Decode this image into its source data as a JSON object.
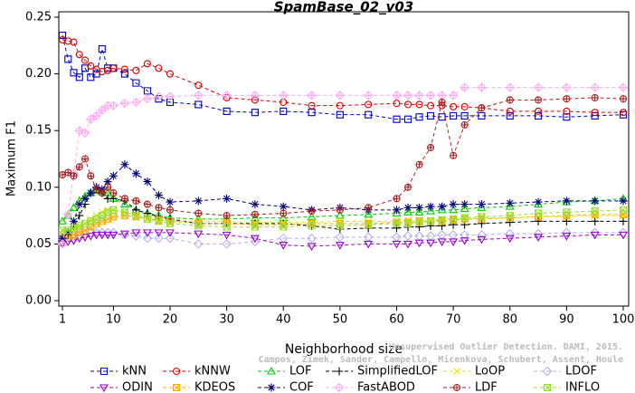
{
  "chart_data": {
    "type": "line",
    "title": "SpamBase_02_v03",
    "x_label": "Neighborhood size",
    "y_label": "Maximum F1",
    "annotations": [
      "Unsupervised Outlier Detection. DAMI, 2015.",
      "Campos, Zimek, Sander, Campello, Micenkova, Schubert, Assent, Houle"
    ],
    "xlim": [
      1,
      100
    ],
    "ylim": [
      0,
      0.25
    ],
    "xticks": [
      1,
      10,
      20,
      30,
      40,
      50,
      60,
      70,
      80,
      90,
      100
    ],
    "yticks": [
      {
        "value": 0,
        "label": "0.00"
      },
      {
        "value": 0.05,
        "label": "0.05"
      },
      {
        "value": 0.1,
        "label": "0.10"
      },
      {
        "value": 0.15,
        "label": "0.15"
      },
      {
        "value": 0.2,
        "label": "0.20"
      },
      {
        "value": 0.25,
        "label": "0.25"
      }
    ],
    "grid": false,
    "legend": "bottom",
    "x": [
      1,
      2,
      3,
      4,
      5,
      6,
      7,
      8,
      9,
      10,
      12,
      14,
      16,
      18,
      20,
      25,
      30,
      35,
      40,
      45,
      50,
      55,
      60,
      62,
      64,
      66,
      68,
      70,
      72,
      75,
      80,
      85,
      90,
      95,
      100
    ],
    "series": [
      {
        "name": "kNN",
        "color": "#0000cc",
        "marker": "square",
        "values": [
          0.234,
          0.213,
          0.201,
          0.197,
          0.205,
          0.197,
          0.2,
          0.222,
          0.205,
          0.205,
          0.2,
          0.192,
          0.185,
          0.178,
          0.175,
          0.173,
          0.167,
          0.166,
          0.167,
          0.166,
          0.164,
          0.164,
          0.16,
          0.16,
          0.162,
          0.163,
          0.162,
          0.163,
          0.163,
          0.163,
          0.163,
          0.163,
          0.162,
          0.163,
          0.164
        ]
      },
      {
        "name": "kNNW",
        "color": "#dd0000",
        "marker": "circle",
        "values": [
          0.23,
          0.229,
          0.228,
          0.217,
          0.212,
          0.207,
          0.204,
          0.202,
          0.203,
          0.205,
          0.204,
          0.203,
          0.209,
          0.205,
          0.2,
          0.19,
          0.179,
          0.177,
          0.175,
          0.172,
          0.172,
          0.173,
          0.174,
          0.173,
          0.173,
          0.172,
          0.172,
          0.171,
          0.171,
          0.17,
          0.167,
          0.167,
          0.167,
          0.166,
          0.166
        ]
      },
      {
        "name": "LOF",
        "color": "#00cc00",
        "marker": "triangle",
        "values": [
          0.07,
          0.075,
          0.082,
          0.088,
          0.092,
          0.095,
          0.097,
          0.096,
          0.095,
          0.09,
          0.085,
          0.08,
          0.077,
          0.075,
          0.073,
          0.072,
          0.072,
          0.073,
          0.073,
          0.074,
          0.075,
          0.076,
          0.077,
          0.078,
          0.078,
          0.079,
          0.08,
          0.08,
          0.081,
          0.082,
          0.083,
          0.085,
          0.087,
          0.088,
          0.09
        ]
      },
      {
        "name": "SimplifiedLOF",
        "color": "#000000",
        "marker": "plus",
        "values": [
          0.055,
          0.058,
          0.065,
          0.075,
          0.085,
          0.095,
          0.1,
          0.095,
          0.09,
          0.09,
          0.088,
          0.08,
          0.077,
          0.074,
          0.072,
          0.068,
          0.068,
          0.068,
          0.068,
          0.066,
          0.063,
          0.064,
          0.064,
          0.065,
          0.065,
          0.066,
          0.066,
          0.067,
          0.067,
          0.068,
          0.069,
          0.07,
          0.07,
          0.07,
          0.07
        ]
      },
      {
        "name": "LoOP",
        "color": "#e6e600",
        "marker": "x",
        "values": [
          0.058,
          0.06,
          0.062,
          0.065,
          0.068,
          0.072,
          0.075,
          0.078,
          0.08,
          0.08,
          0.078,
          0.075,
          0.073,
          0.071,
          0.07,
          0.07,
          0.07,
          0.069,
          0.069,
          0.069,
          0.07,
          0.07,
          0.07,
          0.071,
          0.071,
          0.071,
          0.072,
          0.072,
          0.072,
          0.073,
          0.073,
          0.074,
          0.074,
          0.075,
          0.075
        ]
      },
      {
        "name": "LDOF",
        "color": "#b0b0ee",
        "marker": "diamond",
        "values": [
          0.055,
          0.056,
          0.057,
          0.058,
          0.059,
          0.06,
          0.06,
          0.06,
          0.06,
          0.06,
          0.058,
          0.057,
          0.055,
          0.055,
          0.055,
          0.05,
          0.05,
          0.052,
          0.055,
          0.055,
          0.056,
          0.056,
          0.056,
          0.057,
          0.057,
          0.057,
          0.058,
          0.058,
          0.058,
          0.058,
          0.059,
          0.059,
          0.06,
          0.06,
          0.06
        ]
      },
      {
        "name": "ODIN",
        "color": "#9900cc",
        "marker": "triangle-down",
        "values": [
          0.05,
          0.052,
          0.053,
          0.055,
          0.056,
          0.057,
          0.058,
          0.058,
          0.058,
          0.058,
          0.059,
          0.06,
          0.06,
          0.06,
          0.06,
          0.059,
          0.058,
          0.055,
          0.049,
          0.048,
          0.049,
          0.05,
          0.05,
          0.05,
          0.051,
          0.051,
          0.052,
          0.052,
          0.053,
          0.054,
          0.055,
          0.056,
          0.057,
          0.058,
          0.058
        ]
      },
      {
        "name": "KDEOS",
        "color": "#ffaa00",
        "marker": "square-x",
        "values": [
          0.058,
          0.057,
          0.058,
          0.06,
          0.062,
          0.065,
          0.068,
          0.07,
          0.072,
          0.074,
          0.075,
          0.074,
          0.072,
          0.071,
          0.07,
          0.068,
          0.068,
          0.067,
          0.067,
          0.068,
          0.068,
          0.068,
          0.069,
          0.069,
          0.07,
          0.07,
          0.07,
          0.071,
          0.072,
          0.072,
          0.073,
          0.074,
          0.075,
          0.076,
          0.076
        ]
      },
      {
        "name": "COF",
        "color": "#000080",
        "marker": "star",
        "values": [
          0.055,
          0.06,
          0.07,
          0.085,
          0.09,
          0.095,
          0.1,
          0.098,
          0.105,
          0.11,
          0.12,
          0.112,
          0.105,
          0.093,
          0.087,
          0.088,
          0.09,
          0.085,
          0.083,
          0.08,
          0.082,
          0.08,
          0.08,
          0.082,
          0.082,
          0.083,
          0.083,
          0.085,
          0.085,
          0.085,
          0.086,
          0.087,
          0.088,
          0.088,
          0.088
        ]
      },
      {
        "name": "FastABOD",
        "color": "#ffaaee",
        "marker": "diamond-plus",
        "values": [
          0.05,
          0.076,
          0.112,
          0.15,
          0.148,
          0.16,
          0.163,
          0.168,
          0.172,
          0.172,
          0.174,
          0.175,
          0.178,
          0.18,
          0.18,
          0.181,
          0.181,
          0.181,
          0.181,
          0.181,
          0.181,
          0.181,
          0.181,
          0.181,
          0.181,
          0.181,
          0.181,
          0.181,
          0.188,
          0.188,
          0.188,
          0.188,
          0.188,
          0.188,
          0.188
        ]
      },
      {
        "name": "LDF",
        "color": "#aa2222",
        "marker": "circle-plus",
        "values": [
          0.111,
          0.113,
          0.11,
          0.118,
          0.125,
          0.11,
          0.098,
          0.095,
          0.1,
          0.095,
          0.09,
          0.088,
          0.085,
          0.082,
          0.08,
          0.077,
          0.075,
          0.076,
          0.077,
          0.079,
          0.08,
          0.082,
          0.09,
          0.1,
          0.12,
          0.135,
          0.175,
          0.128,
          0.155,
          0.17,
          0.177,
          0.177,
          0.178,
          0.179,
          0.178
        ]
      },
      {
        "name": "INFLO",
        "color": "#99dd33",
        "marker": "square-x",
        "values": [
          0.062,
          0.062,
          0.064,
          0.066,
          0.068,
          0.07,
          0.072,
          0.075,
          0.078,
          0.08,
          0.078,
          0.075,
          0.072,
          0.07,
          0.068,
          0.066,
          0.065,
          0.065,
          0.065,
          0.066,
          0.066,
          0.067,
          0.068,
          0.068,
          0.069,
          0.07,
          0.071,
          0.072,
          0.073,
          0.074,
          0.075,
          0.077,
          0.078,
          0.079,
          0.08
        ]
      }
    ]
  }
}
